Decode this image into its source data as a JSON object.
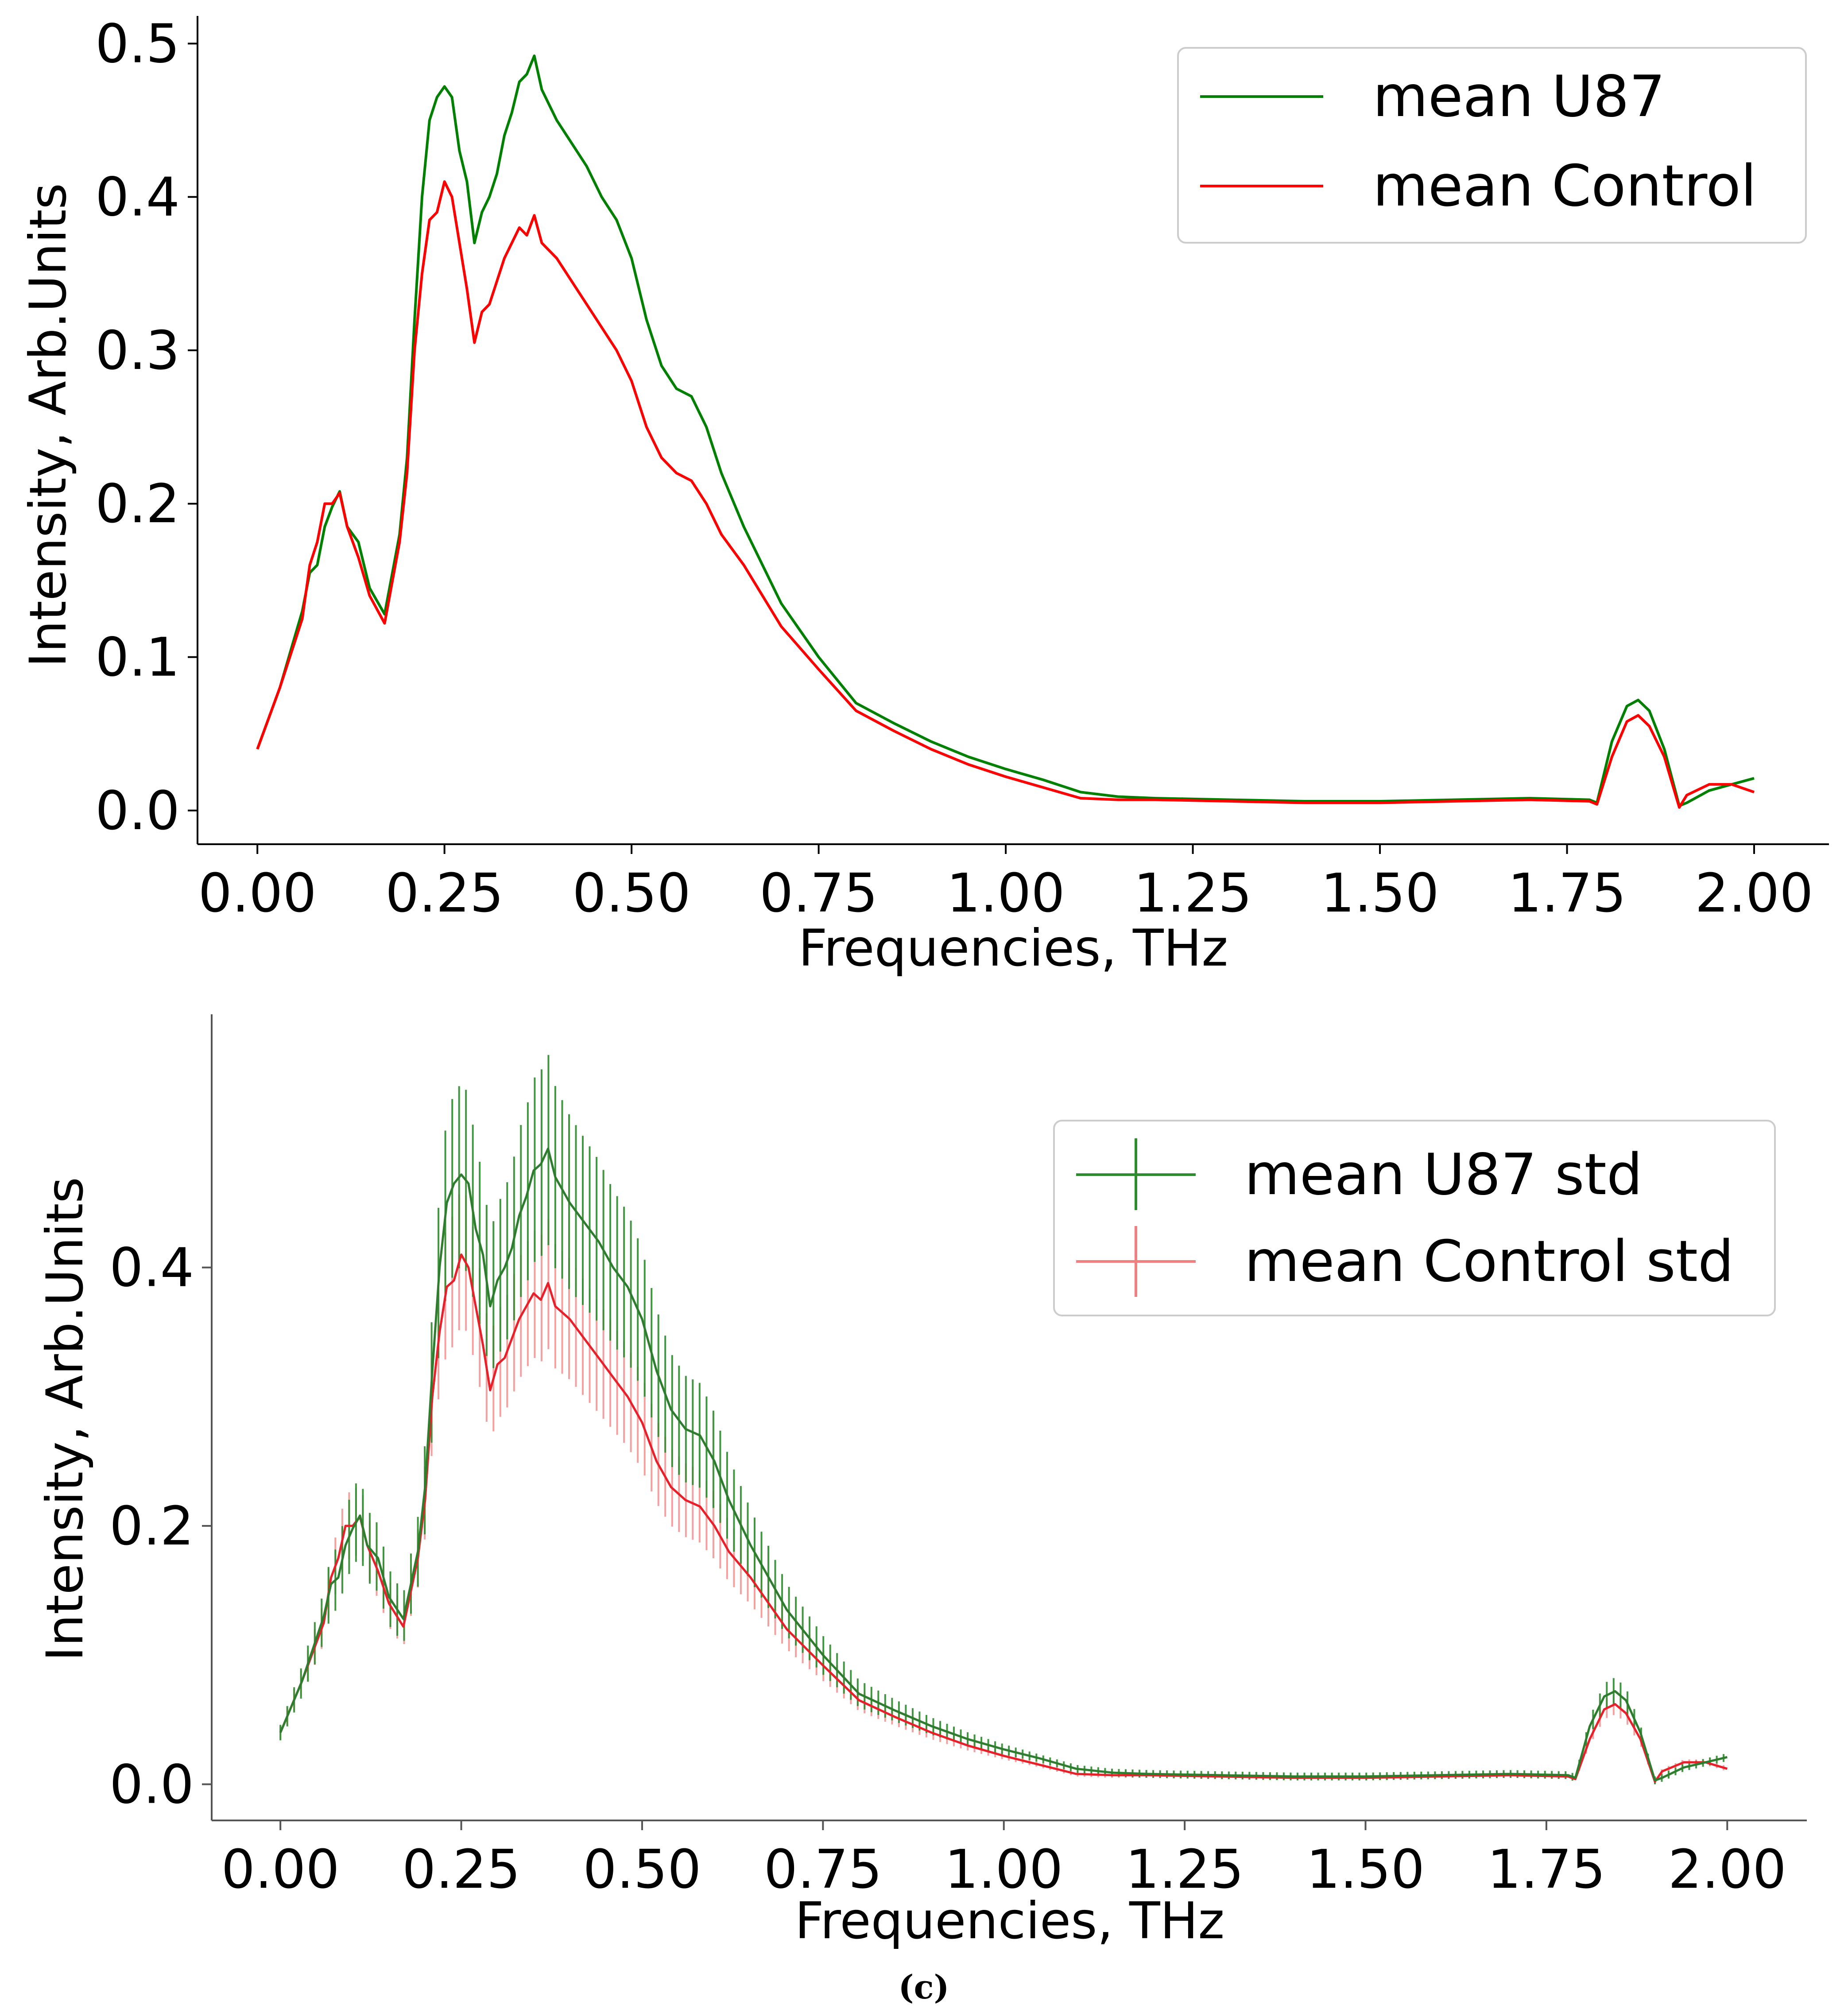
{
  "caption": "(c)",
  "chart_data": [
    {
      "type": "line",
      "xlabel": "Frequencies, THz",
      "ylabel": "Intensity, Arb.Units",
      "xlim": [
        -0.08,
        2.1
      ],
      "ylim": [
        -0.022,
        0.518
      ],
      "xticks": [
        "0.00",
        "0.25",
        "0.50",
        "0.75",
        "1.00",
        "1.25",
        "1.50",
        "1.75",
        "2.00"
      ],
      "yticks": [
        "0.0",
        "0.1",
        "0.2",
        "0.3",
        "0.4",
        "0.5"
      ],
      "legend_position": "top-right",
      "series": [
        {
          "name": "mean U87",
          "color": "#008000",
          "points": [
            [
              0.0,
              0.04
            ],
            [
              0.03,
              0.08
            ],
            [
              0.06,
              0.13
            ],
            [
              0.07,
              0.155
            ],
            [
              0.08,
              0.16
            ],
            [
              0.09,
              0.185
            ],
            [
              0.1,
              0.198
            ],
            [
              0.11,
              0.208
            ],
            [
              0.12,
              0.185
            ],
            [
              0.135,
              0.175
            ],
            [
              0.15,
              0.145
            ],
            [
              0.17,
              0.128
            ],
            [
              0.19,
              0.18
            ],
            [
              0.2,
              0.23
            ],
            [
              0.21,
              0.32
            ],
            [
              0.22,
              0.4
            ],
            [
              0.23,
              0.45
            ],
            [
              0.24,
              0.465
            ],
            [
              0.25,
              0.472
            ],
            [
              0.26,
              0.465
            ],
            [
              0.27,
              0.43
            ],
            [
              0.28,
              0.41
            ],
            [
              0.29,
              0.37
            ],
            [
              0.3,
              0.39
            ],
            [
              0.31,
              0.4
            ],
            [
              0.32,
              0.415
            ],
            [
              0.33,
              0.44
            ],
            [
              0.34,
              0.455
            ],
            [
              0.35,
              0.475
            ],
            [
              0.36,
              0.48
            ],
            [
              0.37,
              0.492
            ],
            [
              0.38,
              0.47
            ],
            [
              0.39,
              0.46
            ],
            [
              0.4,
              0.45
            ],
            [
              0.42,
              0.435
            ],
            [
              0.44,
              0.42
            ],
            [
              0.46,
              0.4
            ],
            [
              0.48,
              0.385
            ],
            [
              0.5,
              0.36
            ],
            [
              0.52,
              0.32
            ],
            [
              0.54,
              0.29
            ],
            [
              0.56,
              0.275
            ],
            [
              0.58,
              0.27
            ],
            [
              0.6,
              0.25
            ],
            [
              0.62,
              0.22
            ],
            [
              0.65,
              0.185
            ],
            [
              0.7,
              0.135
            ],
            [
              0.75,
              0.1
            ],
            [
              0.8,
              0.07
            ],
            [
              0.85,
              0.057
            ],
            [
              0.9,
              0.045
            ],
            [
              0.95,
              0.035
            ],
            [
              1.0,
              0.027
            ],
            [
              1.05,
              0.02
            ],
            [
              1.1,
              0.012
            ],
            [
              1.15,
              0.009
            ],
            [
              1.2,
              0.008
            ],
            [
              1.3,
              0.007
            ],
            [
              1.4,
              0.006
            ],
            [
              1.5,
              0.006
            ],
            [
              1.6,
              0.007
            ],
            [
              1.7,
              0.008
            ],
            [
              1.78,
              0.007
            ],
            [
              1.79,
              0.005
            ],
            [
              1.81,
              0.045
            ],
            [
              1.83,
              0.068
            ],
            [
              1.845,
              0.072
            ],
            [
              1.86,
              0.065
            ],
            [
              1.88,
              0.04
            ],
            [
              1.9,
              0.003
            ],
            [
              1.91,
              0.005
            ],
            [
              1.94,
              0.013
            ],
            [
              1.97,
              0.017
            ],
            [
              2.0,
              0.021
            ]
          ]
        },
        {
          "name": "mean Control",
          "color": "#ff0000",
          "points": [
            [
              0.0,
              0.04
            ],
            [
              0.03,
              0.08
            ],
            [
              0.06,
              0.125
            ],
            [
              0.07,
              0.16
            ],
            [
              0.08,
              0.175
            ],
            [
              0.09,
              0.2
            ],
            [
              0.1,
              0.2
            ],
            [
              0.11,
              0.207
            ],
            [
              0.12,
              0.185
            ],
            [
              0.135,
              0.165
            ],
            [
              0.15,
              0.14
            ],
            [
              0.17,
              0.122
            ],
            [
              0.19,
              0.175
            ],
            [
              0.2,
              0.22
            ],
            [
              0.21,
              0.3
            ],
            [
              0.22,
              0.35
            ],
            [
              0.23,
              0.385
            ],
            [
              0.24,
              0.39
            ],
            [
              0.25,
              0.41
            ],
            [
              0.26,
              0.4
            ],
            [
              0.27,
              0.37
            ],
            [
              0.28,
              0.34
            ],
            [
              0.29,
              0.305
            ],
            [
              0.3,
              0.325
            ],
            [
              0.31,
              0.33
            ],
            [
              0.32,
              0.345
            ],
            [
              0.33,
              0.36
            ],
            [
              0.34,
              0.37
            ],
            [
              0.35,
              0.38
            ],
            [
              0.36,
              0.375
            ],
            [
              0.37,
              0.388
            ],
            [
              0.38,
              0.37
            ],
            [
              0.4,
              0.36
            ],
            [
              0.42,
              0.345
            ],
            [
              0.44,
              0.33
            ],
            [
              0.46,
              0.315
            ],
            [
              0.48,
              0.3
            ],
            [
              0.5,
              0.28
            ],
            [
              0.52,
              0.25
            ],
            [
              0.54,
              0.23
            ],
            [
              0.56,
              0.22
            ],
            [
              0.58,
              0.215
            ],
            [
              0.6,
              0.2
            ],
            [
              0.62,
              0.18
            ],
            [
              0.65,
              0.16
            ],
            [
              0.7,
              0.12
            ],
            [
              0.75,
              0.092
            ],
            [
              0.8,
              0.065
            ],
            [
              0.85,
              0.052
            ],
            [
              0.9,
              0.04
            ],
            [
              0.95,
              0.03
            ],
            [
              1.0,
              0.022
            ],
            [
              1.05,
              0.015
            ],
            [
              1.1,
              0.008
            ],
            [
              1.15,
              0.007
            ],
            [
              1.2,
              0.007
            ],
            [
              1.3,
              0.006
            ],
            [
              1.4,
              0.005
            ],
            [
              1.5,
              0.005
            ],
            [
              1.6,
              0.006
            ],
            [
              1.7,
              0.007
            ],
            [
              1.78,
              0.006
            ],
            [
              1.79,
              0.004
            ],
            [
              1.81,
              0.035
            ],
            [
              1.83,
              0.058
            ],
            [
              1.845,
              0.062
            ],
            [
              1.86,
              0.055
            ],
            [
              1.88,
              0.035
            ],
            [
              1.9,
              0.002
            ],
            [
              1.91,
              0.01
            ],
            [
              1.94,
              0.017
            ],
            [
              1.97,
              0.017
            ],
            [
              2.0,
              0.012
            ]
          ]
        }
      ]
    },
    {
      "type": "line",
      "error_bars": true,
      "xlabel": "Frequencies, THz",
      "ylabel": "Intensity, Arb.Units",
      "xlim": [
        -0.095,
        2.11
      ],
      "ylim": [
        -0.028,
        0.596
      ],
      "xticks": [
        "0.00",
        "0.25",
        "0.50",
        "0.75",
        "1.00",
        "1.25",
        "1.50",
        "1.75",
        "2.00"
      ],
      "yticks": [
        "0.0",
        "0.2",
        "0.4"
      ],
      "legend_position": "upper-right",
      "series": [
        {
          "name": "mean U87 std",
          "color": "#2e8b2e",
          "std_fraction": 0.15,
          "std_floor": 0.003
        },
        {
          "name": "mean Control std",
          "color": "#f08080",
          "std_fraction": 0.13,
          "std_floor": 0.002
        }
      ]
    }
  ]
}
